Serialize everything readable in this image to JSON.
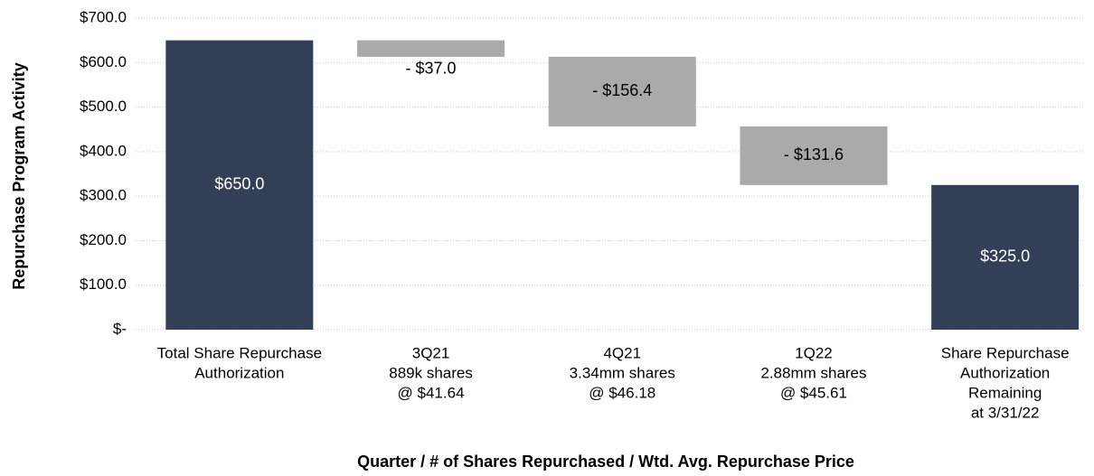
{
  "chart_data": {
    "type": "waterfall",
    "y_axis_label": "Repurchase Program Activity",
    "x_axis_label": "Quarter / # of Shares Repurchased / Wtd. Avg. Repurchase Price",
    "categories": [
      [
        "Total Share Repurchase",
        "Authorization"
      ],
      [
        "3Q21",
        "889k shares",
        "@ $41.64"
      ],
      [
        "4Q21",
        "3.34mm shares",
        "@ $46.18"
      ],
      [
        "1Q22",
        "2.88mm shares",
        "@ $45.61"
      ],
      [
        "Share Repurchase",
        "Authorization",
        "Remaining",
        "at 3/31/22"
      ]
    ],
    "values": [
      650.0,
      -37.0,
      -156.4,
      -131.6,
      325.0
    ],
    "value_labels": [
      "$650.0",
      "- $37.0",
      "- $156.4",
      "- $131.6",
      "$325.0"
    ],
    "totals": [
      true,
      false,
      false,
      false,
      true
    ],
    "total_color": "#333f56",
    "change_color": "#abaaa8",
    "ylim": [
      0,
      700
    ],
    "yticks": [
      {
        "value": 0,
        "label": "$-"
      },
      {
        "value": 100,
        "label": "$100.0"
      },
      {
        "value": 200,
        "label": "$200.0"
      },
      {
        "value": 300,
        "label": "$300.0"
      },
      {
        "value": 400,
        "label": "$400.0"
      },
      {
        "value": 500,
        "label": "$500.0"
      },
      {
        "value": 600,
        "label": "$600.0"
      },
      {
        "value": 700,
        "label": "$700.0"
      }
    ],
    "grid": true
  }
}
